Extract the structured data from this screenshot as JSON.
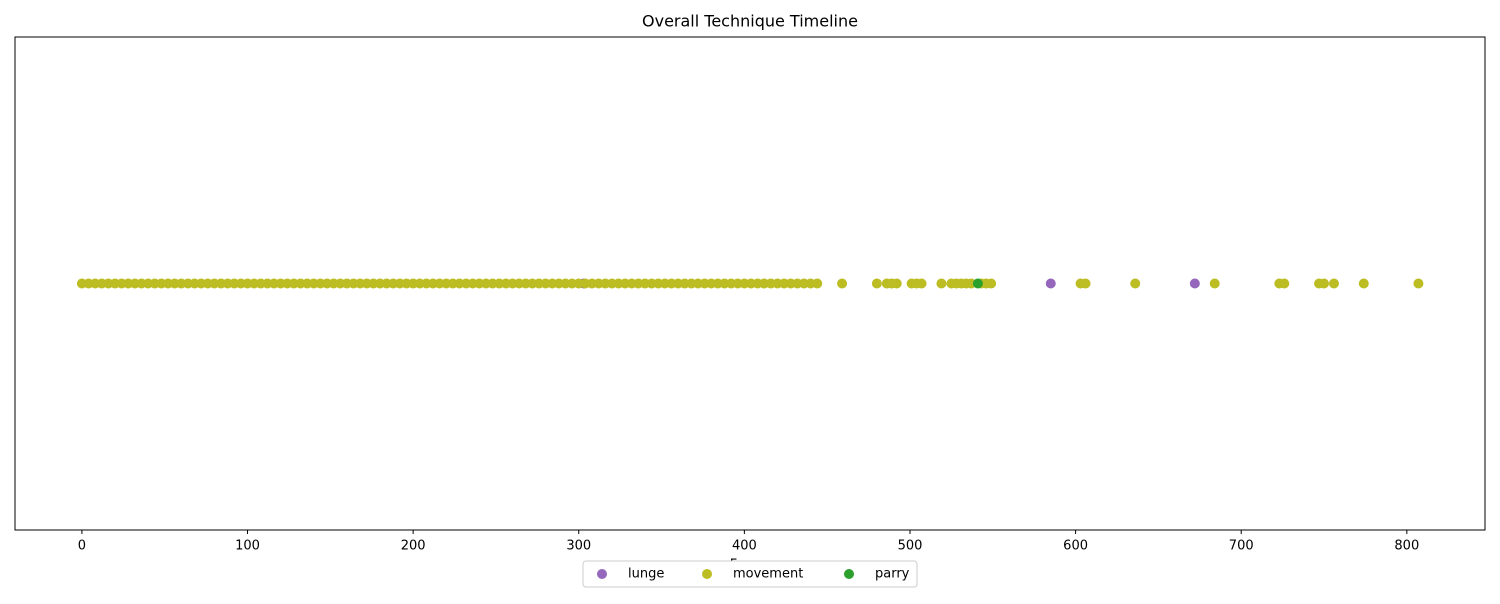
{
  "chart_data": {
    "type": "scatter",
    "title": "Overall Technique Timeline",
    "x_label": "Frame",
    "xlim": [
      -40.4,
      847.2
    ],
    "xticks": [
      0,
      100,
      200,
      300,
      400,
      500,
      600,
      700,
      800
    ],
    "legend": "lower center",
    "series": [
      {
        "name": "lunge",
        "color": "#9467bd",
        "x": [
          303,
          585,
          672
        ]
      },
      {
        "name": "movement",
        "color": "#bcbd22",
        "x": [
          0,
          4,
          8,
          12,
          16,
          20,
          24,
          28,
          32,
          36,
          40,
          44,
          48,
          52,
          56,
          60,
          64,
          68,
          72,
          76,
          80,
          84,
          88,
          92,
          96,
          100,
          104,
          108,
          112,
          116,
          120,
          124,
          128,
          132,
          136,
          140,
          144,
          148,
          152,
          156,
          160,
          164,
          168,
          172,
          176,
          180,
          184,
          188,
          192,
          196,
          200,
          204,
          208,
          212,
          216,
          220,
          224,
          228,
          232,
          236,
          240,
          244,
          248,
          252,
          256,
          260,
          264,
          268,
          272,
          276,
          280,
          284,
          288,
          292,
          296,
          300,
          304,
          308,
          312,
          316,
          320,
          324,
          328,
          332,
          336,
          340,
          344,
          348,
          352,
          356,
          360,
          364,
          368,
          372,
          376,
          380,
          384,
          388,
          392,
          396,
          400,
          404,
          408,
          412,
          416,
          420,
          424,
          428,
          432,
          436,
          440,
          444,
          459,
          480,
          486,
          489,
          492,
          501,
          504,
          507,
          519,
          525,
          528,
          531,
          534,
          537,
          543,
          546,
          549,
          603,
          606,
          636,
          684,
          723,
          726,
          747,
          750,
          756,
          774,
          807
        ]
      },
      {
        "name": "parry",
        "color": "#2ca02c",
        "x": [
          541
        ]
      }
    ]
  }
}
